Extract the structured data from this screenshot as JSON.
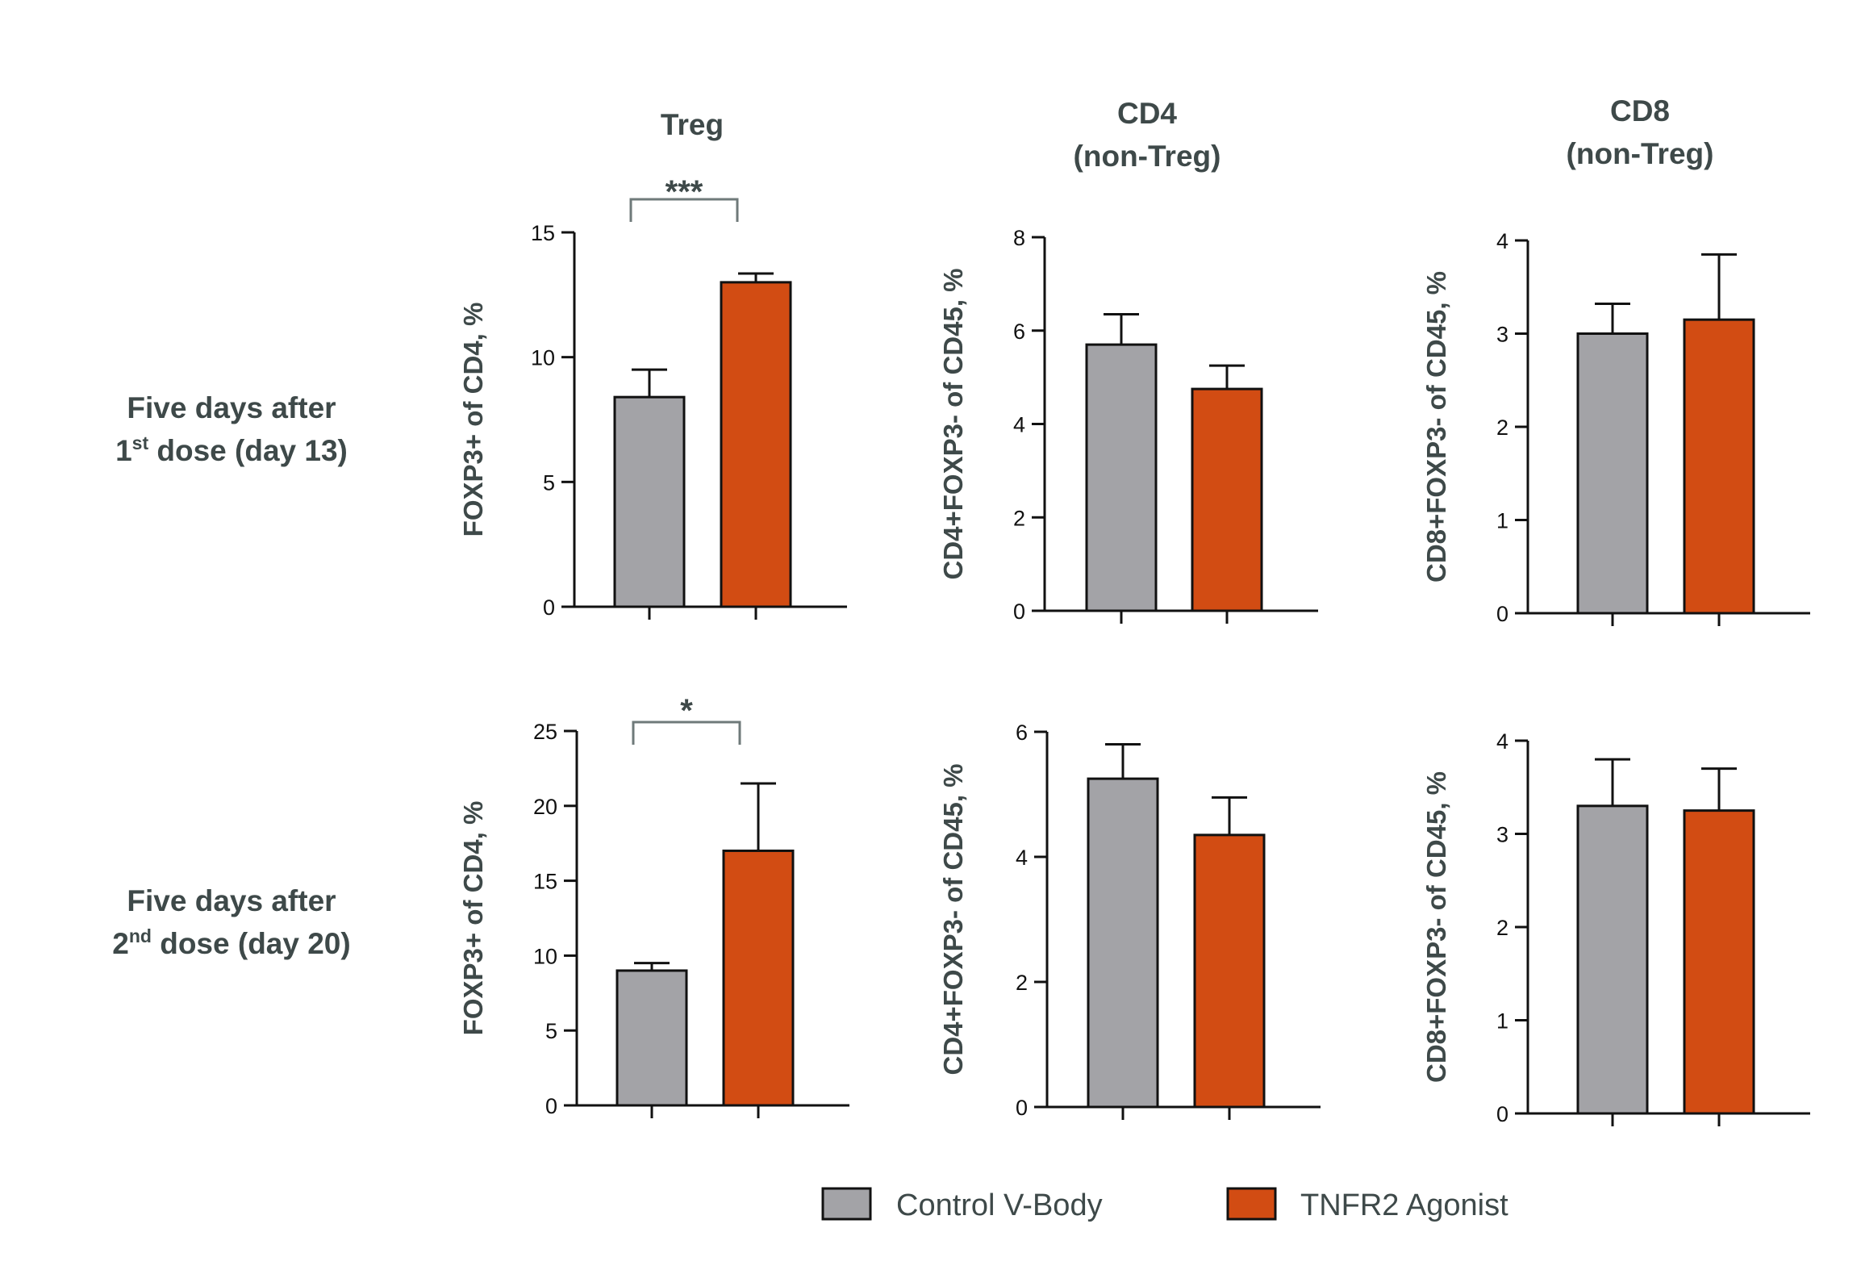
{
  "column_titles": [
    {
      "line1": "Treg",
      "line2": ""
    },
    {
      "line1": "CD4",
      "line2": "(non-Treg)"
    },
    {
      "line1": "CD8",
      "line2": "(non-Treg)"
    }
  ],
  "row_labels": [
    {
      "line1": "Five days after",
      "prefix": "1",
      "sup": "st",
      "suffix": " dose (day 13)"
    },
    {
      "line1": "Five days after",
      "prefix": "2",
      "sup": "nd",
      "suffix": " dose (day 20)"
    }
  ],
  "colors": {
    "control": "#a3a3a7",
    "agonist": "#d24c13",
    "axis": "#111111",
    "bracket": "#6f7a7a"
  },
  "legend": [
    {
      "label": "Control V-Body",
      "series": "control"
    },
    {
      "label": "TNFR2 Agonist",
      "series": "agonist"
    }
  ],
  "chart_data": [
    {
      "type": "bar",
      "row": 0,
      "col": 0,
      "ylabel": "FOXP3+ of CD4, %",
      "ylim": [
        0,
        15
      ],
      "ticks": [
        0,
        5,
        10,
        15
      ],
      "categories": [
        "Control V-Body",
        "TNFR2 Agonist"
      ],
      "values": [
        8.4,
        13.0
      ],
      "errors": [
        1.1,
        0.35
      ],
      "significance": "***"
    },
    {
      "type": "bar",
      "row": 0,
      "col": 1,
      "ylabel": "CD4+FOXP3- of CD45, %",
      "ylim": [
        0,
        8
      ],
      "ticks": [
        0,
        2,
        4,
        6,
        8
      ],
      "categories": [
        "Control V-Body",
        "TNFR2 Agonist"
      ],
      "values": [
        5.7,
        4.75
      ],
      "errors": [
        0.65,
        0.5
      ],
      "significance": ""
    },
    {
      "type": "bar",
      "row": 0,
      "col": 2,
      "ylabel": "CD8+FOXP3- of CD45, %",
      "ylim": [
        0,
        4
      ],
      "ticks": [
        0,
        1,
        2,
        3,
        4
      ],
      "categories": [
        "Control V-Body",
        "TNFR2 Agonist"
      ],
      "values": [
        3.0,
        3.15
      ],
      "errors": [
        0.32,
        0.7
      ],
      "significance": ""
    },
    {
      "type": "bar",
      "row": 1,
      "col": 0,
      "ylabel": "FOXP3+ of CD4, %",
      "ylim": [
        0,
        25
      ],
      "ticks": [
        0,
        5,
        10,
        15,
        20,
        25
      ],
      "categories": [
        "Control V-Body",
        "TNFR2 Agonist"
      ],
      "values": [
        9.0,
        17.0
      ],
      "errors": [
        0.5,
        4.5
      ],
      "significance": "*"
    },
    {
      "type": "bar",
      "row": 1,
      "col": 1,
      "ylabel": "CD4+FOXP3- of CD45, %",
      "ylim": [
        0,
        6
      ],
      "ticks": [
        0,
        2,
        4,
        6
      ],
      "categories": [
        "Control V-Body",
        "TNFR2 Agonist"
      ],
      "values": [
        5.25,
        4.35
      ],
      "errors": [
        0.55,
        0.6
      ],
      "significance": ""
    },
    {
      "type": "bar",
      "row": 1,
      "col": 2,
      "ylabel": "CD8+FOXP3- of CD45, %",
      "ylim": [
        0,
        4
      ],
      "ticks": [
        0,
        1,
        2,
        3,
        4
      ],
      "categories": [
        "Control V-Body",
        "TNFR2 Agonist"
      ],
      "values": [
        3.3,
        3.25
      ],
      "errors": [
        0.5,
        0.45
      ],
      "significance": ""
    }
  ]
}
